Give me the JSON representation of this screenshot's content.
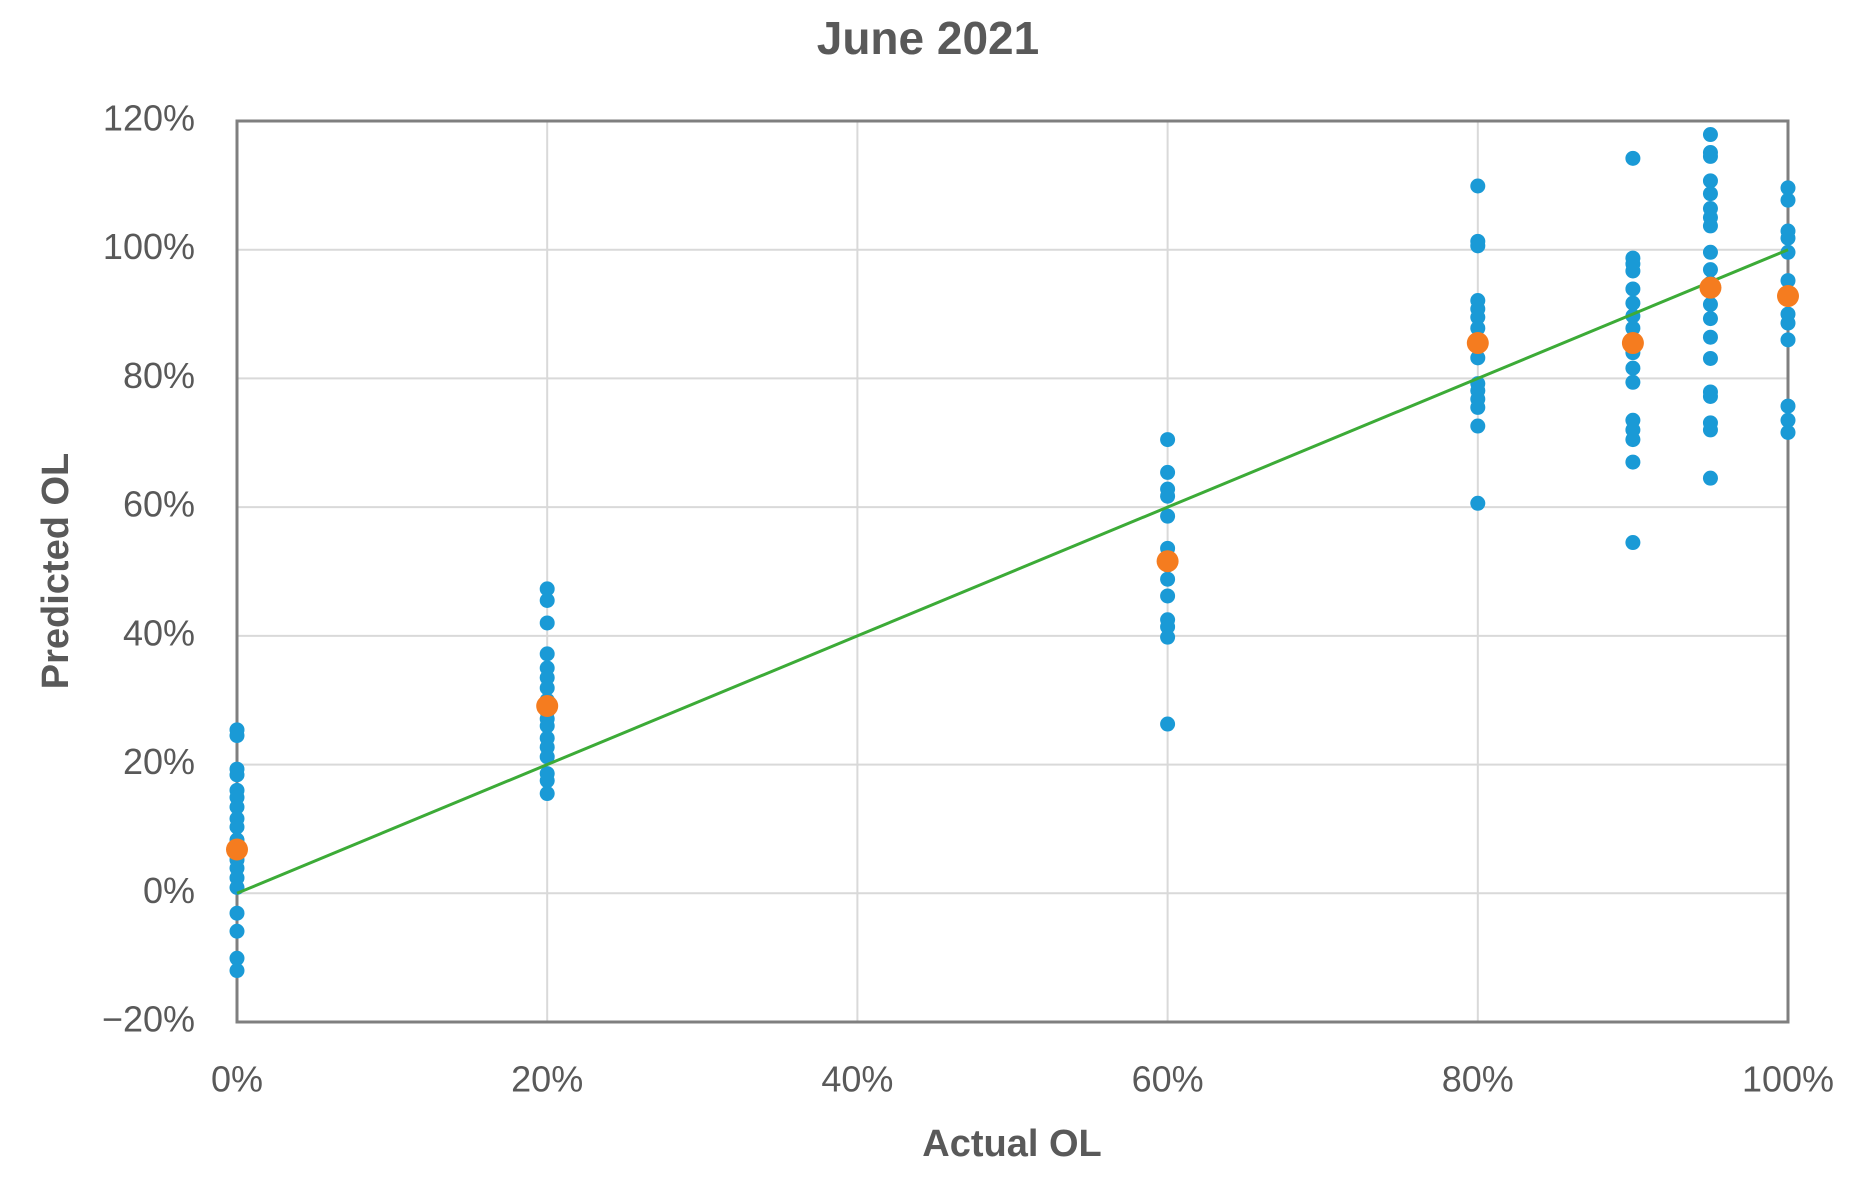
{
  "chart_data": {
    "type": "scatter",
    "title": "June 2021",
    "x_label": "Actual OL",
    "y_label": "Predicted OL",
    "xlim": [
      0,
      100
    ],
    "ylim": [
      -20,
      120
    ],
    "grid": true,
    "xticks": [
      {
        "value": 0,
        "label": "0%"
      },
      {
        "value": 20,
        "label": "20%"
      },
      {
        "value": 40,
        "label": "40%"
      },
      {
        "value": 60,
        "label": "60%"
      },
      {
        "value": 80,
        "label": "80%"
      },
      {
        "value": 100,
        "label": "100%"
      }
    ],
    "yticks": [
      {
        "value": -20,
        "label": "−20%"
      },
      {
        "value": 0,
        "label": "0%"
      },
      {
        "value": 20,
        "label": "20%"
      },
      {
        "value": 40,
        "label": "40%"
      },
      {
        "value": 60,
        "label": "60%"
      },
      {
        "value": 80,
        "label": "80%"
      },
      {
        "value": 100,
        "label": "100%"
      },
      {
        "value": 120,
        "label": "120%"
      }
    ],
    "series": [
      {
        "type": "scatter",
        "color": "#1a9ad6",
        "size": "small",
        "x": [
          0,
          0,
          0,
          0,
          0,
          0,
          0,
          0,
          0,
          0,
          0,
          0,
          0,
          0,
          0,
          0,
          0,
          0,
          20,
          20,
          20,
          20,
          20,
          20,
          20,
          20,
          20,
          20,
          20,
          20,
          20,
          20,
          20,
          20,
          20,
          60,
          60,
          60,
          60,
          60,
          60,
          60,
          60,
          60,
          60,
          60,
          60,
          60,
          80,
          80,
          80,
          80,
          80,
          80,
          80,
          80,
          80,
          80,
          80,
          80,
          80,
          80,
          80,
          90,
          90,
          90,
          90,
          90,
          90,
          90,
          90,
          90,
          90,
          90,
          90,
          90,
          90,
          90,
          90,
          90,
          95,
          95,
          95,
          95,
          95,
          95,
          95,
          95,
          95,
          95,
          95,
          95,
          95,
          95,
          95,
          95,
          95,
          95,
          95,
          95,
          100,
          100,
          100,
          100,
          100,
          100,
          100,
          100,
          100,
          100,
          100,
          100,
          100
        ],
        "values": [
          25.4,
          24.5,
          19.3,
          18.4,
          16,
          14.9,
          13.4,
          11.6,
          10.3,
          8.3,
          5.2,
          3.9,
          2.4,
          0.9,
          -3.1,
          -5.9,
          -10.1,
          -12,
          47.3,
          45.5,
          42,
          37.2,
          35,
          33.5,
          31.9,
          30,
          28.2,
          27.1,
          26,
          24.1,
          22.7,
          21.2,
          18.6,
          17.5,
          15.5,
          70.5,
          65.4,
          62.8,
          61.7,
          58.6,
          53.6,
          51,
          48.8,
          46.2,
          42.5,
          41.4,
          39.8,
          26.3,
          109.9,
          101.3,
          100.6,
          92.1,
          90.8,
          89.5,
          87.8,
          85.3,
          83.2,
          79.2,
          78.1,
          76.8,
          75.5,
          72.6,
          60.6,
          114.2,
          98.7,
          97.8,
          96.7,
          93.9,
          91.7,
          89.7,
          87.8,
          86,
          84,
          81.6,
          79.4,
          73.5,
          72,
          70.5,
          67,
          54.5,
          117.9,
          115.1,
          114.5,
          110.7,
          108.7,
          106.4,
          105,
          103.7,
          99.6,
          96.9,
          94.8,
          91.5,
          89.3,
          86.4,
          83.1,
          77.9,
          77.2,
          73.1,
          72,
          64.5,
          109.6,
          107.7,
          102.9,
          101.8,
          99.6,
          95.2,
          92.6,
          90,
          88.6,
          86,
          75.7,
          73.5,
          71.6
        ]
      },
      {
        "type": "line",
        "color": "#3cab37",
        "x": [
          0,
          100
        ],
        "values": [
          0,
          100
        ]
      },
      {
        "type": "scatter",
        "color": "#f57c1f",
        "size": "large",
        "x": [
          0,
          20,
          60,
          80,
          90,
          95,
          100
        ],
        "values": [
          6.8,
          29.1,
          51.6,
          85.5,
          85.5,
          94.1,
          92.8
        ]
      }
    ]
  }
}
